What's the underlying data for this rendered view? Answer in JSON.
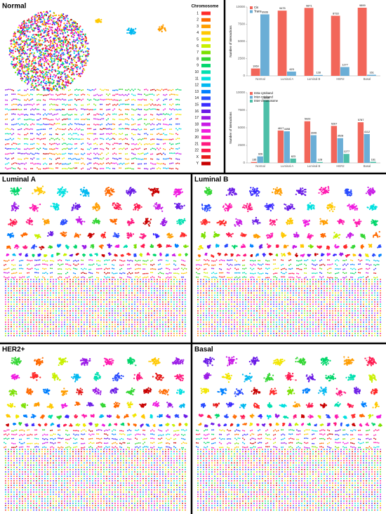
{
  "panels": [
    "Normal",
    "Luminal A",
    "Luminal B",
    "HER2+",
    "Basal"
  ],
  "chromosome_legend": {
    "title": "Chromosome",
    "labels": [
      "1",
      "2",
      "3",
      "4",
      "5",
      "6",
      "7",
      "8",
      "9",
      "10",
      "11",
      "12",
      "13",
      "14",
      "15",
      "16",
      "17",
      "18",
      "19",
      "20",
      "21",
      "22",
      "X",
      "Y"
    ],
    "colors": [
      "#ff2a2a",
      "#ff6a00",
      "#ff9d00",
      "#ffc800",
      "#f2e600",
      "#c8f000",
      "#7be000",
      "#33d633",
      "#00d66b",
      "#00e0b0",
      "#00e0e0",
      "#00b8f0",
      "#0080ff",
      "#2a4dff",
      "#3a2aff",
      "#6a1ae6",
      "#9a1ae6",
      "#c81ae6",
      "#f01ae0",
      "#ff1ab0",
      "#ff1a80",
      "#ff1a50",
      "#e61a1a",
      "#c80000"
    ]
  },
  "chart_data": [
    {
      "type": "bar",
      "y_label": "Number of interactions",
      "categories": [
        "Normal",
        "Luminal A",
        "Luminal B",
        "HER2",
        "Basal"
      ],
      "series": [
        {
          "name": "Cis",
          "color": "#f2665a",
          "values": [
            1069,
            9475,
            9871,
            8733,
            9899
          ]
        },
        {
          "name": "Trans",
          "color": "#6baed6",
          "values": [
            8936,
            623,
            128,
            1277,
            161
          ]
        }
      ],
      "ylim": [
        0,
        10000
      ],
      "yticks": [
        0,
        2500,
        5000,
        7500,
        10000
      ],
      "legend": "top-left"
    },
    {
      "type": "bar",
      "y_label": "Number of interactions",
      "categories": [
        "Normal",
        "Luminal A",
        "Luminal B",
        "HER2",
        "Basal"
      ],
      "series": [
        {
          "name": "Intra-cytoband",
          "color": "#f2665a",
          "values": [
            135,
            4617,
            5929,
            5267,
            5787
          ]
        },
        {
          "name": "Inter-cytoband",
          "color": "#6baed6",
          "values": [
            926,
            4498,
            3946,
            3528,
            4112
          ]
        },
        {
          "name": "Inter-chromosome",
          "color": "#4dbfa8",
          "values": [
            8936,
            623,
            128,
            1277,
            161
          ]
        }
      ],
      "ylim": [
        0,
        10000
      ],
      "yticks": [
        0,
        2500,
        5000,
        7500,
        10000
      ],
      "legend": "top-left"
    }
  ]
}
